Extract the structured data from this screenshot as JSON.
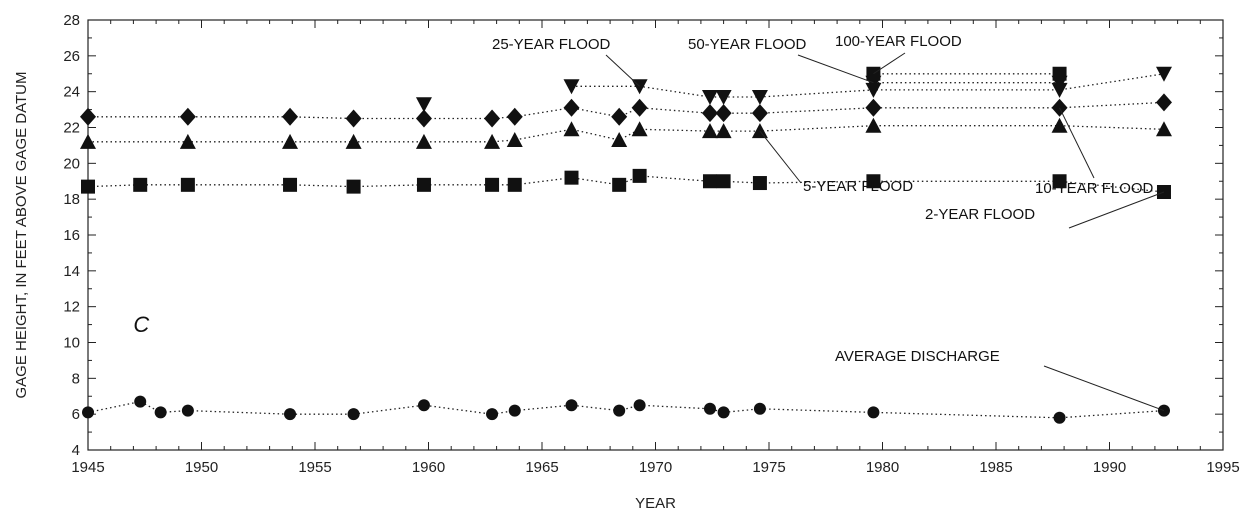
{
  "chart_data": {
    "type": "scatter",
    "title": "",
    "xlabel": "YEAR",
    "ylabel": "GAGE HEIGHT, IN FEET ABOVE GAGE DATUM",
    "xlim": [
      1945,
      1995
    ],
    "ylim": [
      4,
      28
    ],
    "x_ticks": [
      1945,
      1950,
      1955,
      1960,
      1965,
      1970,
      1975,
      1980,
      1985,
      1990,
      1995
    ],
    "y_ticks": [
      4,
      6,
      8,
      10,
      12,
      14,
      16,
      18,
      20,
      22,
      24,
      26,
      28
    ],
    "grid": false,
    "panel_label": "C",
    "series": [
      {
        "name": "2-YEAR FLOOD",
        "marker": "square",
        "x": [
          1945.0,
          1947.3,
          1949.4,
          1953.9,
          1956.7,
          1959.8,
          1962.8,
          1963.8,
          1966.3,
          1968.4,
          1969.3,
          1972.4,
          1973.0,
          1974.6,
          1979.6,
          1987.8,
          1992.4
        ],
        "y": [
          18.7,
          18.8,
          18.8,
          18.8,
          18.7,
          18.8,
          18.8,
          18.8,
          19.2,
          18.8,
          19.3,
          19.0,
          19.0,
          18.9,
          19.0,
          19.0,
          18.4
        ]
      },
      {
        "name": "5-YEAR FLOOD",
        "marker": "triangle-up",
        "x": [
          1945.0,
          1949.4,
          1953.9,
          1956.7,
          1959.8,
          1962.8,
          1963.8,
          1966.3,
          1968.4,
          1969.3,
          1972.4,
          1973.0,
          1974.6,
          1979.6,
          1987.8,
          1992.4
        ],
        "y": [
          21.2,
          21.2,
          21.2,
          21.2,
          21.2,
          21.2,
          21.3,
          21.9,
          21.3,
          21.9,
          21.8,
          21.8,
          21.8,
          22.1,
          22.1,
          21.9
        ]
      },
      {
        "name": "10-YEAR FLOOD",
        "marker": "diamond",
        "x": [
          1945.0,
          1949.4,
          1953.9,
          1956.7,
          1959.8,
          1962.8,
          1963.8,
          1966.3,
          1968.4,
          1969.3,
          1972.4,
          1973.0,
          1974.6,
          1979.6,
          1987.8,
          1992.4
        ],
        "y": [
          22.6,
          22.6,
          22.6,
          22.5,
          22.5,
          22.5,
          22.6,
          23.1,
          22.6,
          23.1,
          22.8,
          22.8,
          22.8,
          23.1,
          23.1,
          23.4
        ]
      },
      {
        "name": "25-YEAR FLOOD",
        "marker": "triangle-down",
        "x": [
          1959.8,
          1966.3,
          1969.3,
          1972.4,
          1973.0,
          1974.6,
          1979.6,
          1987.8,
          1992.4
        ],
        "y": [
          23.3,
          24.3,
          24.3,
          23.7,
          23.7,
          23.7,
          24.1,
          24.1,
          25.0
        ]
      },
      {
        "name": "50-YEAR FLOOD",
        "marker": "triangle-down",
        "x": [
          1979.6,
          1987.8
        ],
        "y": [
          24.5,
          24.5
        ]
      },
      {
        "name": "100-YEAR FLOOD",
        "marker": "square",
        "x": [
          1979.6,
          1987.8
        ],
        "y": [
          25.0,
          25.0
        ]
      },
      {
        "name": "AVERAGE DISCHARGE",
        "marker": "circle",
        "x": [
          1945.0,
          1947.3,
          1948.2,
          1949.4,
          1953.9,
          1956.7,
          1959.8,
          1962.8,
          1963.8,
          1966.3,
          1968.4,
          1969.3,
          1972.4,
          1973.0,
          1974.6,
          1979.6,
          1987.8,
          1992.4
        ],
        "y": [
          6.1,
          6.7,
          6.1,
          6.2,
          6.0,
          6.0,
          6.5,
          6.0,
          6.2,
          6.5,
          6.2,
          6.5,
          6.3,
          6.1,
          6.3,
          6.1,
          5.8,
          6.2
        ]
      }
    ]
  }
}
